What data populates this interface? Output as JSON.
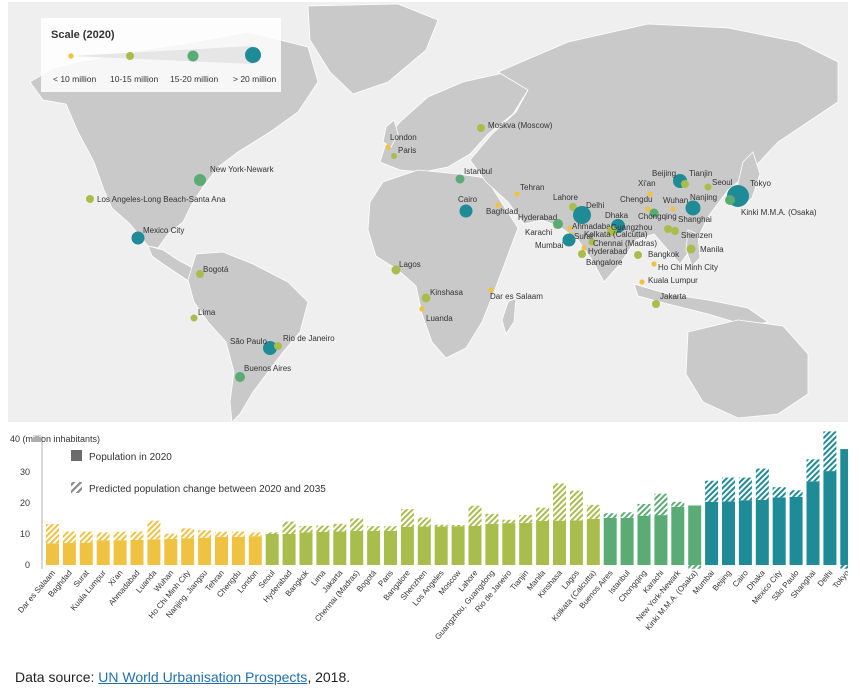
{
  "colors": {
    "yellow": "#f0c241",
    "olive": "#a9bd4c",
    "green": "#5bab74",
    "teal": "#1f8b96",
    "map_panel": "#efefef",
    "land": "#c9c9c9",
    "legend_gray": "#6b6b6b"
  },
  "scale": {
    "title": "Scale (2020)",
    "classes": [
      {
        "label": "< 10 million",
        "color": "#f0c241"
      },
      {
        "label": "10-15 million",
        "color": "#a9bd4c"
      },
      {
        "label": "15-20 million",
        "color": "#5bab74"
      },
      {
        "label": "> 20 million",
        "color": "#1f8b96"
      }
    ]
  },
  "map_labels": {
    "moskva": "Moskva (Moscow)",
    "london": "London",
    "paris": "Paris",
    "istanbul": "Istanbul",
    "tehran": "Tehran",
    "baghdad": "Baghdad",
    "cairo": "Cairo",
    "lagos": "Lagos",
    "kinshasa": "Kinshasa",
    "luanda": "Luanda",
    "dar": "Dar es Salaam",
    "newyork": "New York-Newark",
    "losangeles": "Los Angeles-Long Beach-Santa Ana",
    "mexico": "Mexico City",
    "bogota": "Bogotá",
    "lima": "Lima",
    "saopaulo": "São Paulo",
    "rio": "Rio de Janeiro",
    "buenosaires": "Buenos Aires",
    "lahore": "Lahore",
    "delhi": "Delhi",
    "hyderabad_pk": "Hyderabad",
    "karachi": "Karachi",
    "ahmadabad": "Ahmadabad",
    "surat": "Surat",
    "mumbai": "Mumbai",
    "dhaka": "Dhaka",
    "kolkata": "Kolkata (Calcutta)",
    "chennai": "Chennai (Madras)",
    "hyderabad_in": "Hyderabad",
    "bangalore": "Bangalore",
    "beijing": "Beijing",
    "tianjin": "Tianjin",
    "seoul": "Seoul",
    "tokyo": "Tokyo",
    "xian": "Xi'an",
    "chengdu": "Chengdu",
    "wuhan": "Wuhan",
    "nanjing": "Nanjing",
    "kinki": "Kinki M.M.A. (Osaka)",
    "chongqing": "Chongqing",
    "shanghai": "Shanghai",
    "guangzhou": "Guangzhou",
    "shenzen": "Shenzen",
    "bangkok": "Bangkok",
    "manila": "Manila",
    "hochiminh": "Ho Chi Minh City",
    "kualalumpur": "Kuala Lumpur",
    "jakarta": "Jakarta"
  },
  "chart_data": {
    "type": "bar",
    "ylabel": "40 (million inhabitants)",
    "ylim": [
      0,
      40
    ],
    "yticks": [
      0,
      10,
      20,
      30
    ],
    "legend": [
      {
        "label": "Population in 2020",
        "style": "solid"
      },
      {
        "label": "Predicted population change between 2020 and 2035",
        "style": "hatched"
      }
    ],
    "legend_position": "top-left",
    "grid": false,
    "categories": [
      "Dar es Salaam",
      "Baghdad",
      "Surat",
      "Kuala Lumpur",
      "Xi'an",
      "Ahmadabad",
      "Luanda",
      "Wuhan",
      "Ho Chi Minh City",
      "Nanjing, Jiangsu",
      "Tehran",
      "Chengdu",
      "London",
      "Seoul",
      "Hyderabad",
      "Bangkok",
      "Lima",
      "Jakarta",
      "Chennai (Madras)",
      "Bogotá",
      "Paris",
      "Bangalore",
      "Shenzhen",
      "Los Angeles",
      "Moscow",
      "Lahore",
      "Guangzhou, Guangdong",
      "Rio de Janeiro",
      "Tianjin",
      "Manila",
      "Kinshasa",
      "Lagos",
      "Kolkata (Calcutta)",
      "Buenos Aires",
      "Istanbul",
      "Chongqing",
      "Karachi",
      "New York-Newark",
      "Kinki M.M.A. (Osaka)",
      "Mumbai",
      "Beijing",
      "Cairo",
      "Dhaka",
      "Mexico City",
      "São Paulo",
      "Shanghai",
      "Delhi",
      "Tokyo"
    ],
    "series": [
      {
        "name": "Population in 2020",
        "values": [
          7.0,
          7.1,
          7.2,
          8.0,
          8.0,
          8.1,
          8.3,
          8.4,
          8.6,
          8.8,
          9.1,
          9.1,
          9.3,
          10.0,
          10.0,
          10.5,
          10.7,
          10.8,
          11.0,
          11.0,
          11.0,
          12.3,
          12.4,
          12.4,
          12.5,
          12.6,
          13.3,
          13.5,
          13.6,
          14.2,
          14.3,
          14.4,
          14.9,
          15.2,
          15.2,
          15.9,
          16.1,
          18.8,
          19.2,
          20.4,
          20.5,
          20.9,
          21.0,
          21.8,
          22.0,
          27.0,
          30.3,
          37.4
        ]
      },
      {
        "name": "Predicted population change between 2020 and 2035",
        "values": [
          6.2,
          3.7,
          3.6,
          2.5,
          2.7,
          2.7,
          6.0,
          1.7,
          3.2,
          2.4,
          1.6,
          1.7,
          1.2,
          0.5,
          4.0,
          2.1,
          2.0,
          2.5,
          4.0,
          1.5,
          1.5,
          5.7,
          2.9,
          0.6,
          0.4,
          6.5,
          3.2,
          1.1,
          2.5,
          4.3,
          12.0,
          9.6,
          4.5,
          1.5,
          1.8,
          3.8,
          6.9,
          1.6,
          -1.2,
          6.8,
          7.7,
          7.3,
          10.1,
          3.3,
          2.1,
          7.1,
          12.8,
          -1.2
        ]
      }
    ],
    "series_colors": [
      "#f0c241",
      "#f0c241",
      "#f0c241",
      "#f0c241",
      "#f0c241",
      "#f0c241",
      "#f0c241",
      "#f0c241",
      "#f0c241",
      "#f0c241",
      "#f0c241",
      "#f0c241",
      "#f0c241",
      "#a9bd4c",
      "#a9bd4c",
      "#a9bd4c",
      "#a9bd4c",
      "#a9bd4c",
      "#a9bd4c",
      "#a9bd4c",
      "#a9bd4c",
      "#a9bd4c",
      "#a9bd4c",
      "#a9bd4c",
      "#a9bd4c",
      "#a9bd4c",
      "#a9bd4c",
      "#a9bd4c",
      "#a9bd4c",
      "#a9bd4c",
      "#a9bd4c",
      "#a9bd4c",
      "#a9bd4c",
      "#5bab74",
      "#5bab74",
      "#5bab74",
      "#5bab74",
      "#5bab74",
      "#5bab74",
      "#1f8b96",
      "#1f8b96",
      "#1f8b96",
      "#1f8b96",
      "#1f8b96",
      "#1f8b96",
      "#1f8b96",
      "#1f8b96",
      "#1f8b96"
    ]
  },
  "source": {
    "prefix": "Data source: ",
    "link_text": "UN World Urbanisation Prospects",
    "suffix": ", 2018."
  }
}
